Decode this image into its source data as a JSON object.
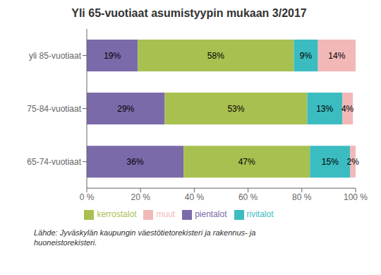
{
  "chart_data": {
    "type": "bar",
    "orientation": "horizontal",
    "stacked": true,
    "data_labels": true,
    "legend": "bottom",
    "title": "Yli 65-vuotiaat asumistyypin mukaan 3/2017",
    "categories": [
      "yli 85-vuotiaat",
      "75-84-vuotiaat",
      "65-74-vuotiaat"
    ],
    "series": [
      {
        "name": "pientalot",
        "color": "#7B6AAA",
        "values": [
          19,
          29,
          36
        ],
        "value_labels": [
          "19%",
          "29%",
          "36%"
        ]
      },
      {
        "name": "kerrostalot",
        "color": "#A8C050",
        "values": [
          58,
          53,
          47
        ],
        "value_labels": [
          "58%",
          "53%",
          "47%"
        ]
      },
      {
        "name": "rivitalot",
        "color": "#3BBCC0",
        "values": [
          9,
          13,
          15
        ],
        "value_labels": [
          "9%",
          "13%",
          "15%"
        ]
      },
      {
        "name": "muut",
        "color": "#F2B8B8",
        "values": [
          14,
          4,
          2
        ],
        "value_labels": [
          "14%",
          "4%",
          "2%"
        ]
      }
    ],
    "xlim": [
      0,
      100
    ],
    "xticks": [
      {
        "value": 0,
        "label": "0 %"
      },
      {
        "value": 20,
        "label": "20 %"
      },
      {
        "value": 40,
        "label": "40 %"
      },
      {
        "value": 60,
        "label": "60 %"
      },
      {
        "value": 80,
        "label": "80 %"
      },
      {
        "value": 100,
        "label": "100 %"
      }
    ],
    "annotations": [
      "Lähde: Jyväskylän kaupungin väestötietorekisteri ja rakennus- ja\nhuoneistorekisteri."
    ]
  }
}
